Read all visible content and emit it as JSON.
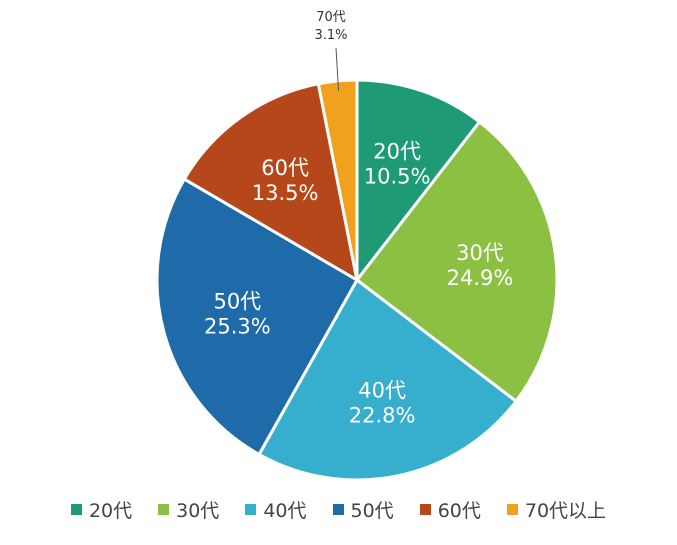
{
  "chart_data": {
    "type": "pie",
    "title": "",
    "slices": [
      {
        "label": "20代",
        "value": 10.5,
        "value_text": "10.5%",
        "color": "#1f9a77",
        "label_inside": true
      },
      {
        "label": "30代",
        "value": 24.9,
        "value_text": "24.9%",
        "color": "#8cc043",
        "label_inside": true
      },
      {
        "label": "40代",
        "value": 22.8,
        "value_text": "22.8%",
        "color": "#36aecd",
        "label_inside": true
      },
      {
        "label": "50代",
        "value": 25.3,
        "value_text": "25.3%",
        "color": "#1f6aa9",
        "label_inside": true
      },
      {
        "label": "60代",
        "value": 13.5,
        "value_text": "13.5%",
        "color": "#b5471a",
        "label_inside": true
      },
      {
        "label": "70代",
        "value": 3.1,
        "value_text": "3.1%",
        "color": "#f0a11e",
        "label_inside": false
      }
    ],
    "legend": {
      "placement": "bottom",
      "entries": [
        {
          "label": "20代",
          "color": "#1f9a77"
        },
        {
          "label": "30代",
          "color": "#8cc043"
        },
        {
          "label": "40代",
          "color": "#36aecd"
        },
        {
          "label": "50代",
          "color": "#1f6aa9"
        },
        {
          "label": "60代",
          "color": "#b5471a"
        },
        {
          "label": "70代以上",
          "color": "#f0a11e"
        }
      ]
    }
  }
}
